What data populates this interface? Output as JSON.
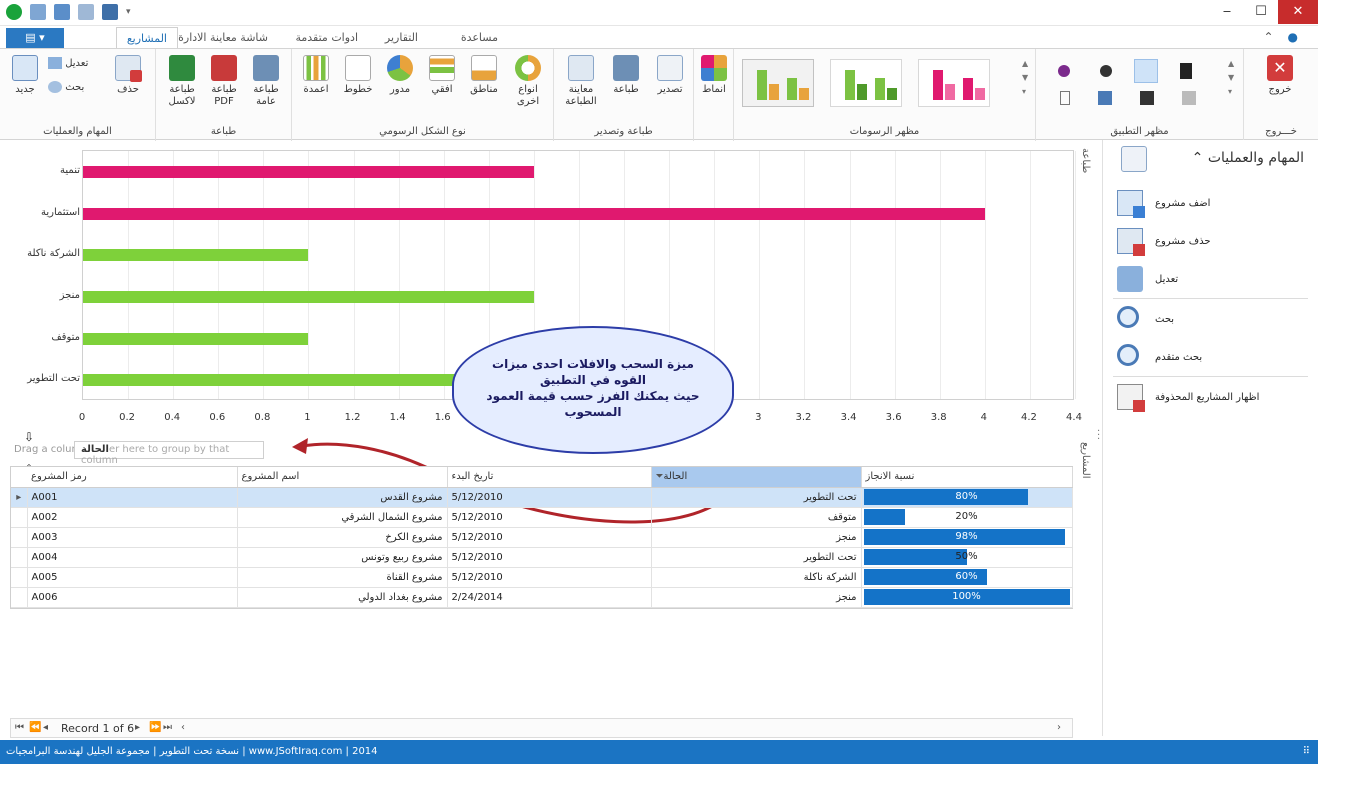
{
  "tabs": {
    "file_label": "▤",
    "items": [
      "المشاريع",
      "شاشة معاينة الادارة",
      "ادوات متقدمة",
      "التقارير",
      "مساعدة"
    ]
  },
  "ribbon": {
    "ops": {
      "title": "المهام والعمليات",
      "new": "جديد",
      "edit": "تعديل",
      "search": "بحث",
      "delete": "حذف"
    },
    "print": {
      "title": "طباعة",
      "excel": "طباعة\nلاكسل",
      "pdf": "طباعة\nPDF",
      "general": "طباعة\nعامة"
    },
    "charts": {
      "title": "نوع الشكل الرسومي",
      "columns": "اعمدة",
      "lines": "خطوط",
      "pie": "مدور",
      "horizontal": "افقي",
      "areas": "مناطق",
      "other": "انواع\nاخرى"
    },
    "printexport": {
      "title": "طباعة وتصدير",
      "preview": "معاينة\nالطباعة",
      "print": "طباعة",
      "export": "تصدير"
    },
    "styles": {
      "label": "انماط"
    },
    "chartlook": {
      "title": "مظهر الرسومات"
    },
    "applook": {
      "title": "مظهر التطبيق"
    },
    "exit": {
      "title": "خـــروج",
      "label": "خروج"
    }
  },
  "chart_data": {
    "type": "bar",
    "orientation": "horizontal",
    "categories": [
      "تنمية",
      "استثمارية",
      "الشركة ناكلة",
      "منجز",
      "متوقف",
      "تحت التطوير"
    ],
    "values": [
      2,
      4,
      1,
      2,
      1,
      2
    ],
    "colors": [
      "#e0196f",
      "#e0196f",
      "#7ed13a",
      "#7ed13a",
      "#7ed13a",
      "#7ed13a"
    ],
    "xlim": [
      0,
      4.4
    ],
    "ticks": [
      "0",
      "0.2",
      "0.4",
      "0.6",
      "0.8",
      "1",
      "1.2",
      "1.4",
      "1.6",
      "1.8",
      "2",
      "2.2",
      "2.4",
      "2.6",
      "2.8",
      "3",
      "3.2",
      "3.4",
      "3.6",
      "3.8",
      "4",
      "4.2",
      "4.4"
    ],
    "grid": true
  },
  "side_labels": {
    "printing": "طباعة",
    "projects": "المشاريع"
  },
  "callout": {
    "line1": "ميزة السحب والافلات احدى ميزات",
    "line2": "القوه في التطبيق",
    "line3": "حيث يمكنك الفرز حسب قيمة العمود",
    "line4": "المسحوب"
  },
  "groupbar": {
    "hint": "Drag a colum",
    "chip_hidden": "er here to group by that column",
    "chip": "الحالة"
  },
  "grid": {
    "headers": {
      "code": "رمز المشروع",
      "name": "اسم المشروع",
      "start": "تاريخ البدء",
      "status": "الحالة",
      "progress": "نسبة الانجاز"
    },
    "rows": [
      {
        "code": "A001",
        "name": "مشروع القدس",
        "start": "5/12/2010",
        "status": "تحت التطوير",
        "progress_text": "80%",
        "progress": 0.8
      },
      {
        "code": "A002",
        "name": "مشروع الشمال الشرقي",
        "start": "5/12/2010",
        "status": "متوقف",
        "progress_text": "20%",
        "progress": 0.2
      },
      {
        "code": "A003",
        "name": "مشروع الكرخ",
        "start": "5/12/2010",
        "status": "منجز",
        "progress_text": "98%",
        "progress": 0.98
      },
      {
        "code": "A004",
        "name": "مشروع ربيع وتونس",
        "start": "5/12/2010",
        "status": "تحت التطوير",
        "progress_text": "50%",
        "progress": 0.5
      },
      {
        "code": "A005",
        "name": "مشروع القناة",
        "start": "5/12/2010",
        "status": "الشركة ناكلة",
        "progress_text": "60%",
        "progress": 0.6
      },
      {
        "code": "A006",
        "name": "مشروع بغداد الدولي",
        "start": "2/24/2014",
        "status": "منجز",
        "progress_text": "100%",
        "progress": 1.0
      }
    ]
  },
  "navigator": {
    "record": "Record 1 of 6"
  },
  "sidepanel": {
    "header": "المهام والعمليات",
    "items": [
      "اضف مشروع",
      "حذف مشروع",
      "تعديل",
      "بحث",
      "بحث متقدم",
      "اظهار المشاريع المحذوفة"
    ]
  },
  "statusbar": {
    "text": "نسخة تحت التطوير  |  مجموعة الجليل لهندسة البرامجيات  |  www.JSoftIraq.com | 2014"
  }
}
